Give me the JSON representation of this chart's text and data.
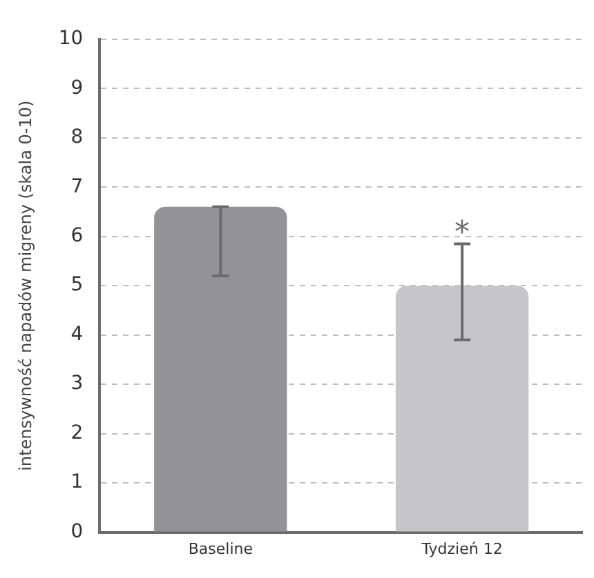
{
  "chart_data": {
    "type": "bar",
    "ylabel": "intensywność napadów migreny (skala 0-10)",
    "categories": [
      "Baseline",
      "Tydzień 12"
    ],
    "values": [
      6.6,
      5.0
    ],
    "colors": [
      "#939297",
      "#c6c6c8"
    ],
    "errors": [
      [
        5.2,
        6.6
      ],
      [
        3.9,
        5.85
      ]
    ],
    "annotations": [
      "*"
    ],
    "ylim": [
      0,
      10
    ],
    "yticks": [
      0,
      1,
      2,
      3,
      4,
      5,
      6,
      7,
      8,
      9,
      10
    ],
    "grid": "y",
    "legend": false
  }
}
